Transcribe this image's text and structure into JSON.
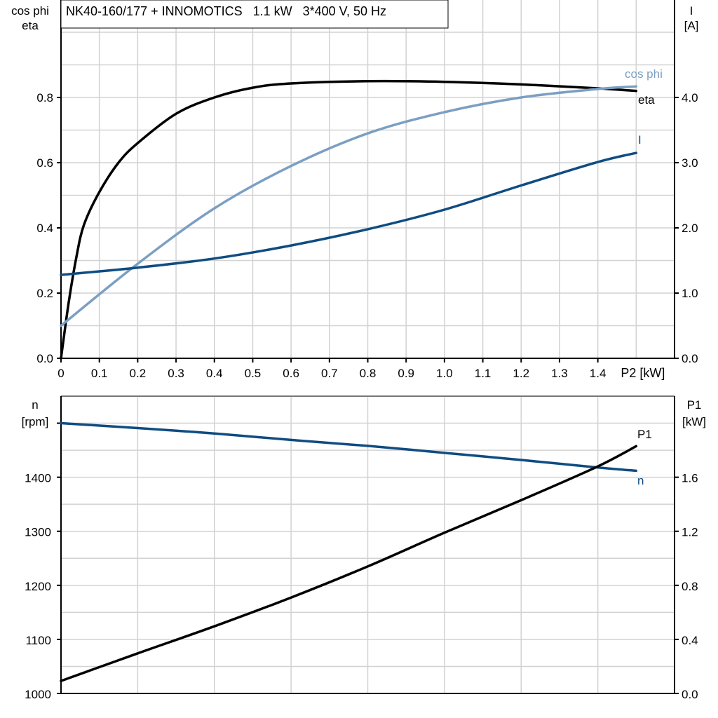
{
  "colors": {
    "eta": "#000000",
    "cos_phi": "#7b9fc2",
    "I": "#0f4c82",
    "n": "#0f4c82",
    "P1": "#000000",
    "grid": "#d2d2d2"
  },
  "chart_data": [
    {
      "type": "line",
      "title": "NK40-160/177 + INNOMOTICS   1.1 kW   3*400 V, 50 Hz",
      "xlabel": "P2 [kW]",
      "ylabel_left": [
        "cos phi",
        "eta"
      ],
      "ylabel_right": [
        "I",
        "[A]"
      ],
      "xlim": [
        0,
        1.6
      ],
      "ylim_left": [
        0,
        1.0
      ],
      "ylim_right": [
        0,
        5.0
      ],
      "x_ticks": [
        "0",
        "0.1",
        "0.2",
        "0.3",
        "0.4",
        "0.5",
        "0.6",
        "0.7",
        "0.8",
        "0.9",
        "1.0",
        "1.1",
        "1.2",
        "1.3",
        "1.4"
      ],
      "y_ticks_left": [
        "0.0",
        "0.2",
        "0.4",
        "0.6",
        "0.8"
      ],
      "y_ticks_right": [
        "0.0",
        "1.0",
        "2.0",
        "3.0",
        "4.0"
      ],
      "grid": true,
      "series": [
        {
          "name": "eta",
          "axis": "left",
          "x": [
            0,
            0.02,
            0.04,
            0.06,
            0.1,
            0.15,
            0.2,
            0.3,
            0.4,
            0.5,
            0.6,
            0.8,
            1.0,
            1.2,
            1.4,
            1.5
          ],
          "y": [
            0,
            0.17,
            0.31,
            0.41,
            0.51,
            0.6,
            0.66,
            0.75,
            0.8,
            0.83,
            0.843,
            0.85,
            0.848,
            0.84,
            0.828,
            0.82
          ]
        },
        {
          "name": "cos phi",
          "axis": "left",
          "x": [
            0,
            0.2,
            0.4,
            0.6,
            0.8,
            1.0,
            1.2,
            1.4,
            1.5
          ],
          "y": [
            0.1,
            0.29,
            0.46,
            0.59,
            0.69,
            0.755,
            0.8,
            0.826,
            0.834
          ]
        },
        {
          "name": "I",
          "axis": "right",
          "x": [
            0,
            0.2,
            0.4,
            0.6,
            0.8,
            1.0,
            1.2,
            1.4,
            1.5
          ],
          "y": [
            1.28,
            1.39,
            1.53,
            1.73,
            1.98,
            2.28,
            2.65,
            3.01,
            3.15
          ]
        }
      ]
    },
    {
      "type": "line",
      "xlim": [
        0,
        1.6
      ],
      "ylabel_left": [
        "n",
        "[rpm]"
      ],
      "ylabel_right": [
        "P1",
        "[kW]"
      ],
      "ylim_left": [
        1000,
        1550
      ],
      "ylim_right": [
        0,
        2.2
      ],
      "y_ticks_left": [
        "1000",
        "1100",
        "1200",
        "1300",
        "1400"
      ],
      "y_ticks_right": [
        "0.0",
        "0.4",
        "0.8",
        "1.2",
        "1.6"
      ],
      "grid": true,
      "series": [
        {
          "name": "n",
          "axis": "left",
          "x": [
            0,
            0.2,
            0.4,
            0.6,
            0.8,
            1.0,
            1.2,
            1.4,
            1.5
          ],
          "y": [
            1500,
            1491,
            1481,
            1469,
            1458,
            1445,
            1432,
            1418,
            1412
          ]
        },
        {
          "name": "P1",
          "axis": "right",
          "x": [
            0,
            0.2,
            0.4,
            0.6,
            0.8,
            1.0,
            1.2,
            1.4,
            1.5
          ],
          "y": [
            0.093,
            0.297,
            0.497,
            0.71,
            0.94,
            1.19,
            1.43,
            1.68,
            1.83
          ]
        }
      ]
    }
  ]
}
